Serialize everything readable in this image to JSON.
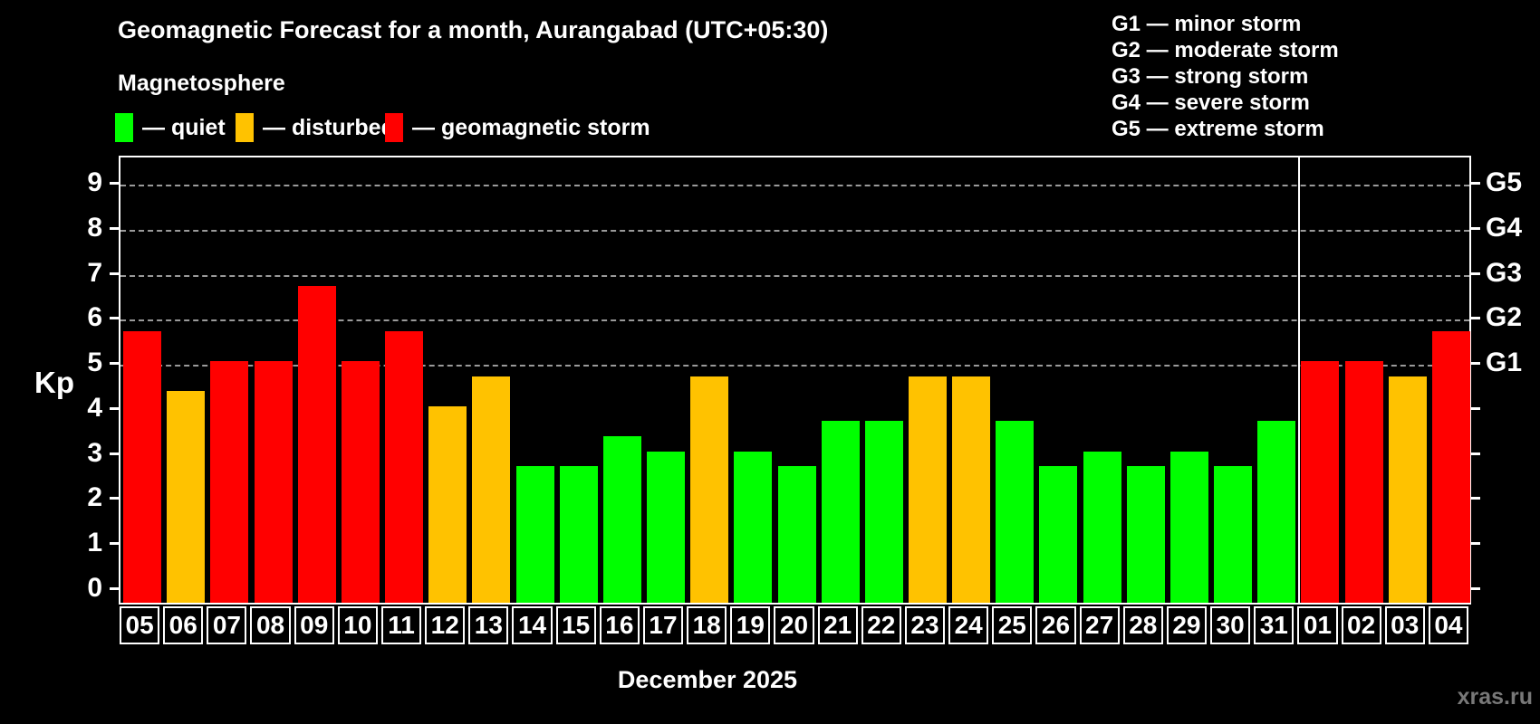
{
  "header": {
    "title": "Geomagnetic Forecast for a month, Aurangabad (UTC+05:30)",
    "subtitle": "Magnetosphere"
  },
  "legend": {
    "items": [
      {
        "name": "quiet",
        "label": "— quiet",
        "color": "#00ff00"
      },
      {
        "name": "disturbed",
        "label": "— disturbed",
        "color": "#ffc200"
      },
      {
        "name": "storm",
        "label": "— geomagnetic storm",
        "color": "#ff0000"
      }
    ]
  },
  "storm_scale_legend": [
    "G1 — minor storm",
    "G2 — moderate storm",
    "G3 — strong storm",
    "G4 — severe storm",
    "G5 — extreme storm"
  ],
  "chart_data": {
    "type": "bar",
    "title": "Geomagnetic Forecast for a month, Aurangabad (UTC+05:30)",
    "subtitle": "Magnetosphere",
    "ylabel": "Kp",
    "xlabel": "December 2025",
    "ylim": [
      0,
      9.6
    ],
    "grid": "horizontal dashed gridlines at Kp 5,6,7,8,9",
    "categories": [
      "05",
      "06",
      "07",
      "08",
      "09",
      "10",
      "11",
      "12",
      "13",
      "14",
      "15",
      "16",
      "17",
      "18",
      "19",
      "20",
      "21",
      "22",
      "23",
      "24",
      "25",
      "26",
      "27",
      "28",
      "29",
      "30",
      "31",
      "01",
      "02",
      "03",
      "04"
    ],
    "values": [
      5.67,
      4.33,
      5,
      5,
      6.67,
      5,
      5.67,
      4,
      4.67,
      2.67,
      2.67,
      3.33,
      3,
      4.67,
      3,
      2.67,
      3.67,
      3.67,
      4.67,
      4.67,
      3.67,
      2.67,
      3,
      2.67,
      3,
      2.67,
      3.67,
      5,
      5,
      4.67,
      5.67
    ],
    "statuses": [
      "storm",
      "disturbed",
      "storm",
      "storm",
      "storm",
      "storm",
      "storm",
      "disturbed",
      "disturbed",
      "quiet",
      "quiet",
      "quiet",
      "quiet",
      "disturbed",
      "quiet",
      "quiet",
      "quiet",
      "quiet",
      "disturbed",
      "disturbed",
      "quiet",
      "quiet",
      "quiet",
      "quiet",
      "quiet",
      "quiet",
      "quiet",
      "storm",
      "storm",
      "disturbed",
      "storm"
    ],
    "month_split_index": 27,
    "y_ticks": [
      "0",
      "1",
      "2",
      "3",
      "4",
      "5",
      "6",
      "7",
      "8",
      "9"
    ],
    "right_axis_labels": [
      {
        "label": "G1",
        "kp": 5
      },
      {
        "label": "G2",
        "kp": 6
      },
      {
        "label": "G3",
        "kp": 7
      },
      {
        "label": "G4",
        "kp": 8
      },
      {
        "label": "G5",
        "kp": 9
      }
    ],
    "colors": {
      "quiet": "#00ff00",
      "disturbed": "#ffc200",
      "storm": "#ff0000"
    }
  },
  "footer": {
    "month_label": "December 2025",
    "watermark": "xras.ru"
  }
}
